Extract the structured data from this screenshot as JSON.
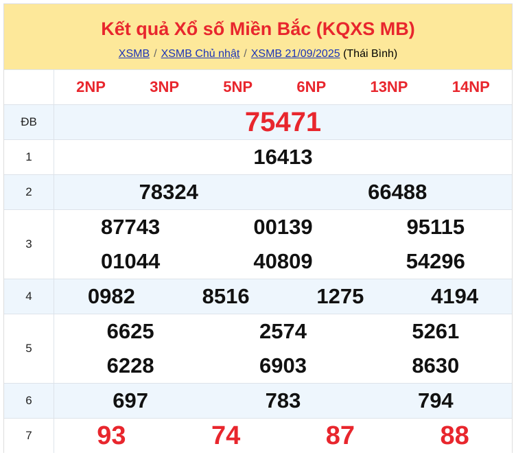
{
  "header": {
    "title": "Kết quả Xổ số Miền Bắc (KQXS MB)",
    "breadcrumb": [
      "XSMB",
      "XSMB Chủ nhật",
      "XSMB 21/09/2025"
    ],
    "province": "(Thái Bình)"
  },
  "codes": [
    "2NP",
    "3NP",
    "5NP",
    "6NP",
    "13NP",
    "14NP"
  ],
  "prizes": [
    {
      "label": "ĐB",
      "rows": [
        [
          "75471"
        ]
      ]
    },
    {
      "label": "1",
      "rows": [
        [
          "16413"
        ]
      ]
    },
    {
      "label": "2",
      "rows": [
        [
          "78324",
          "66488"
        ]
      ]
    },
    {
      "label": "3",
      "rows": [
        [
          "87743",
          "00139",
          "95115"
        ],
        [
          "01044",
          "40809",
          "54296"
        ]
      ]
    },
    {
      "label": "4",
      "rows": [
        [
          "0982",
          "8516",
          "1275",
          "4194"
        ]
      ]
    },
    {
      "label": "5",
      "rows": [
        [
          "6625",
          "2574",
          "5261"
        ],
        [
          "6228",
          "6903",
          "8630"
        ]
      ]
    },
    {
      "label": "6",
      "rows": [
        [
          "697",
          "783",
          "794"
        ]
      ]
    },
    {
      "label": "7",
      "rows": [
        [
          "93",
          "74",
          "87",
          "88"
        ]
      ]
    }
  ],
  "colors": {
    "accent": "#e8262d",
    "header_bg": "#fde89a",
    "alt_row": "#eef6fd"
  }
}
